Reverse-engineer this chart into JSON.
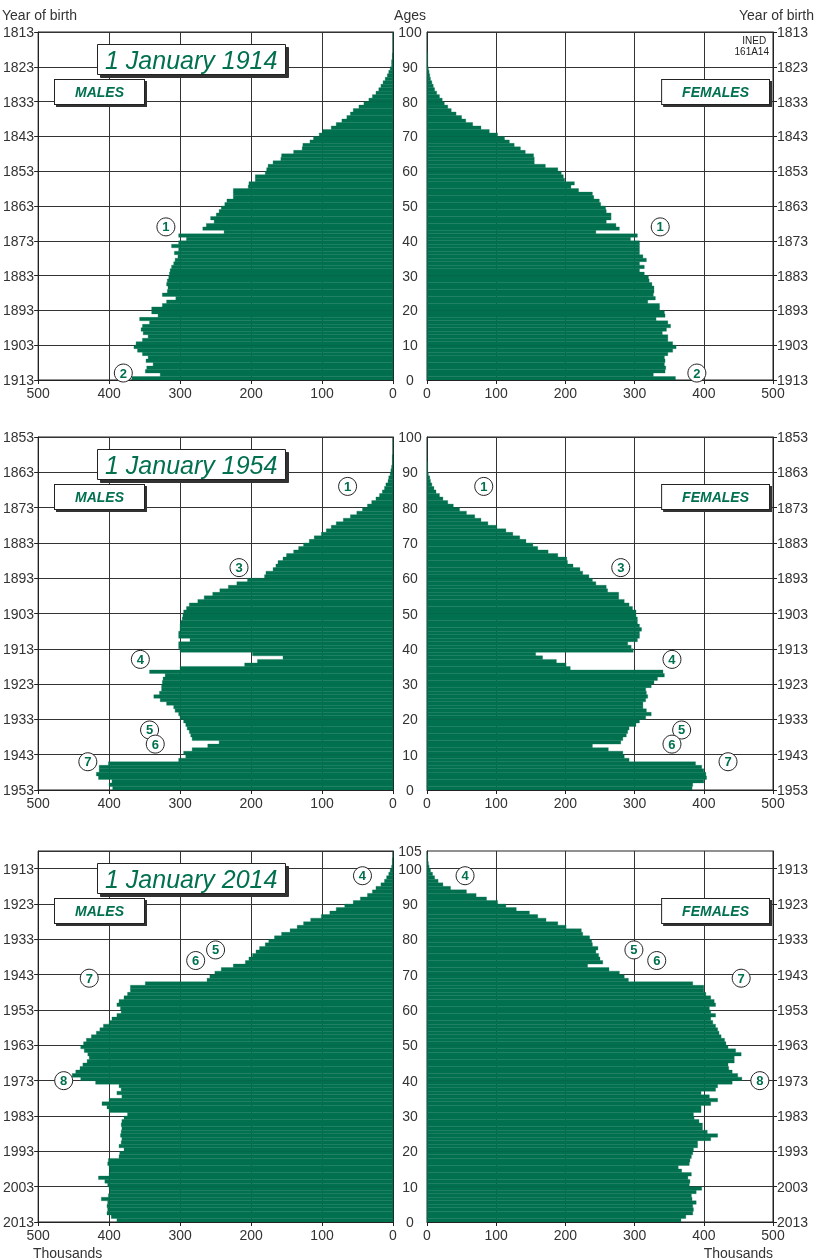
{
  "chart_data": [
    {
      "type": "histogram",
      "orientation": "horizontal",
      "title": "1 January 1914",
      "ylabel": "Ages",
      "y2label": "Year of birth",
      "color": "#00704f",
      "grid": true,
      "bins": [
        0,
        1,
        2,
        3,
        4,
        5,
        6,
        7,
        8,
        9,
        10,
        11,
        12,
        13,
        14,
        15,
        16,
        17,
        18,
        19,
        20,
        21,
        22,
        23,
        24,
        25,
        26,
        27,
        28,
        29,
        30,
        31,
        32,
        33,
        34,
        35,
        36,
        37,
        38,
        39,
        40,
        41,
        42,
        43,
        44,
        45,
        46,
        47,
        48,
        49,
        50,
        51,
        52,
        53,
        54,
        55,
        56,
        57,
        58,
        59,
        60,
        61,
        62,
        63,
        64,
        65,
        66,
        67,
        68,
        69,
        70,
        71,
        72,
        73,
        74,
        75,
        76,
        77,
        78,
        79,
        80,
        81,
        82,
        83,
        84,
        85,
        86,
        87,
        88,
        89,
        90,
        91,
        92,
        93,
        94,
        95,
        96,
        97,
        98,
        99,
        100,
        101
      ],
      "values": [
        368,
        328,
        349,
        347,
        338,
        348,
        345,
        353,
        360,
        365,
        362,
        353,
        345,
        352,
        355,
        353,
        343,
        357,
        331,
        340,
        340,
        325,
        319,
        306,
        325,
        318,
        317,
        319,
        318,
        316,
        315,
        314,
        312,
        309,
        307,
        303,
        308,
        302,
        312,
        302,
        291,
        302,
        238,
        268,
        263,
        252,
        257,
        249,
        245,
        242,
        237,
        234,
        225,
        225,
        225,
        204,
        203,
        194,
        194,
        180,
        178,
        176,
        169,
        158,
        157,
        140,
        128,
        127,
        117,
        112,
        104,
        99,
        87,
        80,
        72,
        65,
        60,
        56,
        48,
        41,
        34,
        29,
        24,
        20,
        17,
        14,
        11,
        8,
        6,
        4,
        2,
        2,
        1,
        1,
        0,
        0,
        0,
        0,
        0,
        0,
        0
      ],
      "xlim": [
        500,
        0
      ],
      "xticks": [
        500,
        400,
        300,
        200,
        100,
        0
      ],
      "ylim": [
        0,
        100
      ],
      "yticks": [
        0,
        10,
        20,
        30,
        40,
        50,
        60,
        70,
        80,
        90,
        100
      ],
      "y2lim": [
        1913,
        1813
      ],
      "y2ticks": [
        1913,
        1903,
        1893,
        1883,
        1873,
        1863,
        1853,
        1843,
        1833,
        1823,
        1813
      ],
      "annotations": [
        "MALES",
        {
          "text": "1",
          "x": 320,
          "y": 44
        },
        {
          "text": "2",
          "x": 380,
          "y": 2
        }
      ]
    },
    {
      "type": "histogram",
      "orientation": "horizontal",
      "y2label": "Year of birth",
      "color": "#00704f",
      "grid": true,
      "bins": [
        0,
        1,
        2,
        3,
        4,
        5,
        6,
        7,
        8,
        9,
        10,
        11,
        12,
        13,
        14,
        15,
        16,
        17,
        18,
        19,
        20,
        21,
        22,
        23,
        24,
        25,
        26,
        27,
        28,
        29,
        30,
        31,
        32,
        33,
        34,
        35,
        36,
        37,
        38,
        39,
        40,
        41,
        42,
        43,
        44,
        45,
        46,
        47,
        48,
        49,
        50,
        51,
        52,
        53,
        54,
        55,
        56,
        57,
        58,
        59,
        60,
        61,
        62,
        63,
        64,
        65,
        66,
        67,
        68,
        69,
        70,
        71,
        72,
        73,
        74,
        75,
        76,
        77,
        78,
        79,
        80,
        81,
        82,
        83,
        84,
        85,
        86,
        87,
        88,
        89,
        90,
        91,
        92,
        93,
        94,
        95,
        96,
        97,
        98,
        99,
        100,
        101
      ],
      "values": [
        359,
        327,
        344,
        345,
        343,
        344,
        343,
        348,
        355,
        360,
        355,
        348,
        348,
        340,
        346,
        352,
        348,
        331,
        344,
        343,
        336,
        336,
        319,
        330,
        327,
        328,
        328,
        325,
        321,
        320,
        314,
        307,
        314,
        307,
        317,
        312,
        307,
        307,
        307,
        307,
        294,
        304,
        244,
        278,
        273,
        259,
        266,
        266,
        259,
        258,
        251,
        249,
        241,
        239,
        219,
        208,
        213,
        199,
        197,
        194,
        189,
        171,
        155,
        155,
        154,
        142,
        135,
        126,
        119,
        112,
        102,
        90,
        78,
        66,
        56,
        50,
        42,
        35,
        30,
        25,
        22,
        18,
        14,
        11,
        9,
        7,
        5,
        4,
        3,
        2,
        1,
        1,
        1,
        1,
        0,
        0,
        0,
        0,
        0,
        0,
        0
      ],
      "xlim": [
        0,
        500
      ],
      "xticks": [
        0,
        100,
        200,
        300,
        400,
        500
      ],
      "ylim": [
        0,
        100
      ],
      "y2lim": [
        1913,
        1813
      ],
      "y2ticks": [
        1913,
        1903,
        1893,
        1883,
        1873,
        1863,
        1853,
        1843,
        1833,
        1823,
        1813
      ],
      "annotations": [
        "INED 161A14",
        "FEMALES",
        {
          "text": "1",
          "x": 337,
          "y": 44
        },
        {
          "text": "2",
          "x": 390,
          "y": 2
        }
      ]
    },
    {
      "type": "histogram",
      "orientation": "horizontal",
      "title": "1 January 1954",
      "color": "#00704f",
      "grid": true,
      "bins": [
        0,
        1,
        2,
        3,
        4,
        5,
        6,
        7,
        8,
        9,
        10,
        11,
        12,
        13,
        14,
        15,
        16,
        17,
        18,
        19,
        20,
        21,
        22,
        23,
        24,
        25,
        26,
        27,
        28,
        29,
        30,
        31,
        32,
        33,
        34,
        35,
        36,
        37,
        38,
        39,
        40,
        41,
        42,
        43,
        44,
        45,
        46,
        47,
        48,
        49,
        50,
        51,
        52,
        53,
        54,
        55,
        56,
        57,
        58,
        59,
        60,
        61,
        62,
        63,
        64,
        65,
        66,
        67,
        68,
        69,
        70,
        71,
        72,
        73,
        74,
        75,
        76,
        77,
        78,
        79,
        80,
        81,
        82,
        83,
        84,
        85,
        86,
        87,
        88,
        89,
        90,
        91,
        92,
        93,
        94,
        95,
        96,
        97,
        98,
        99,
        100,
        101
      ],
      "values": [
        395,
        400,
        396,
        415,
        418,
        414,
        414,
        401,
        302,
        292,
        295,
        283,
        261,
        245,
        283,
        285,
        287,
        290,
        292,
        295,
        300,
        302,
        307,
        309,
        319,
        328,
        337,
        329,
        326,
        326,
        325,
        324,
        321,
        343,
        300,
        209,
        191,
        155,
        198,
        300,
        302,
        302,
        286,
        302,
        302,
        300,
        300,
        299,
        297,
        296,
        295,
        291,
        287,
        275,
        266,
        254,
        244,
        232,
        220,
        205,
        181,
        179,
        169,
        165,
        162,
        155,
        150,
        140,
        133,
        126,
        118,
        111,
        101,
        94,
        87,
        80,
        70,
        60,
        51,
        43,
        36,
        30,
        24,
        19,
        15,
        12,
        10,
        7,
        6,
        4,
        3,
        2,
        1,
        1,
        1,
        0,
        0,
        0,
        0,
        0,
        0
      ],
      "xlim": [
        500,
        0
      ],
      "xticks": [
        500,
        400,
        300,
        200,
        100,
        0
      ],
      "ylim": [
        0,
        100
      ],
      "yticks": [
        0,
        10,
        20,
        30,
        40,
        50,
        60,
        70,
        80,
        90,
        100
      ],
      "y2lim": [
        1953,
        1853
      ],
      "y2ticks": [
        1953,
        1943,
        1933,
        1923,
        1913,
        1903,
        1893,
        1883,
        1873,
        1863,
        1853
      ],
      "annotations": [
        "MALES",
        {
          "text": "1",
          "x": 64,
          "y": 86
        },
        {
          "text": "3",
          "x": 217,
          "y": 63
        },
        {
          "text": "4",
          "x": 356,
          "y": 37
        },
        {
          "text": "5",
          "x": 343,
          "y": 17
        },
        {
          "text": "6",
          "x": 335,
          "y": 13
        },
        {
          "text": "7",
          "x": 430,
          "y": 8
        }
      ]
    },
    {
      "type": "histogram",
      "orientation": "horizontal",
      "color": "#00704f",
      "grid": true,
      "bins": [
        0,
        1,
        2,
        3,
        4,
        5,
        6,
        7,
        8,
        9,
        10,
        11,
        12,
        13,
        14,
        15,
        16,
        17,
        18,
        19,
        20,
        21,
        22,
        23,
        24,
        25,
        26,
        27,
        28,
        29,
        30,
        31,
        32,
        33,
        34,
        35,
        36,
        37,
        38,
        39,
        40,
        41,
        42,
        43,
        44,
        45,
        46,
        47,
        48,
        49,
        50,
        51,
        52,
        53,
        54,
        55,
        56,
        57,
        58,
        59,
        60,
        61,
        62,
        63,
        64,
        65,
        66,
        67,
        68,
        69,
        70,
        71,
        72,
        73,
        74,
        75,
        76,
        77,
        78,
        79,
        80,
        81,
        82,
        83,
        84,
        85,
        86,
        87,
        88,
        89,
        90,
        91,
        92,
        93,
        94,
        95,
        96,
        97,
        98,
        99,
        100,
        101
      ],
      "values": [
        383,
        384,
        400,
        404,
        403,
        400,
        397,
        388,
        292,
        285,
        283,
        262,
        239,
        280,
        283,
        288,
        290,
        292,
        302,
        307,
        316,
        324,
        317,
        312,
        312,
        316,
        319,
        317,
        316,
        324,
        328,
        333,
        343,
        341,
        207,
        201,
        187,
        167,
        157,
        298,
        295,
        290,
        304,
        307,
        307,
        310,
        307,
        304,
        304,
        302,
        302,
        297,
        292,
        285,
        277,
        277,
        261,
        259,
        244,
        239,
        234,
        225,
        221,
        211,
        203,
        202,
        189,
        175,
        160,
        153,
        143,
        134,
        124,
        114,
        101,
        88,
        78,
        69,
        57,
        47,
        38,
        30,
        23,
        18,
        13,
        10,
        7,
        5,
        4,
        2,
        1,
        1,
        1,
        0,
        0,
        0,
        0,
        0,
        0,
        0,
        0
      ],
      "xlim": [
        0,
        500
      ],
      "xticks": [
        0,
        100,
        200,
        300,
        400,
        500
      ],
      "ylim": [
        0,
        100
      ],
      "y2lim": [
        1953,
        1853
      ],
      "y2ticks": [
        1953,
        1943,
        1933,
        1923,
        1913,
        1903,
        1893,
        1883,
        1873,
        1863,
        1853
      ],
      "annotations": [
        "FEMALES",
        {
          "text": "1",
          "x": 82,
          "y": 86
        },
        {
          "text": "3",
          "x": 280,
          "y": 63
        },
        {
          "text": "4",
          "x": 354,
          "y": 37
        },
        {
          "text": "5",
          "x": 368,
          "y": 17
        },
        {
          "text": "6",
          "x": 354,
          "y": 13
        },
        {
          "text": "7",
          "x": 435,
          "y": 8
        }
      ]
    },
    {
      "type": "histogram",
      "orientation": "horizontal",
      "title": "1 January 2014",
      "xlabel": "Thousands",
      "color": "#00704f",
      "grid": true,
      "bins": [
        0,
        1,
        2,
        3,
        4,
        5,
        6,
        7,
        8,
        9,
        10,
        11,
        12,
        13,
        14,
        15,
        16,
        17,
        18,
        19,
        20,
        21,
        22,
        23,
        24,
        25,
        26,
        27,
        28,
        29,
        30,
        31,
        32,
        33,
        34,
        35,
        36,
        37,
        38,
        39,
        40,
        41,
        42,
        43,
        44,
        45,
        46,
        47,
        48,
        49,
        50,
        51,
        52,
        53,
        54,
        55,
        56,
        57,
        58,
        59,
        60,
        61,
        62,
        63,
        64,
        65,
        66,
        67,
        68,
        69,
        70,
        71,
        72,
        73,
        74,
        75,
        76,
        77,
        78,
        79,
        80,
        81,
        82,
        83,
        84,
        85,
        86,
        87,
        88,
        89,
        90,
        91,
        92,
        93,
        94,
        95,
        96,
        97,
        98,
        99,
        100,
        101,
        102,
        103,
        104,
        105
      ],
      "values": [
        389,
        397,
        403,
        402,
        403,
        402,
        411,
        401,
        399,
        400,
        402,
        406,
        415,
        400,
        399,
        400,
        402,
        401,
        386,
        385,
        379,
        386,
        383,
        382,
        384,
        383,
        382,
        383,
        382,
        379,
        374,
        400,
        403,
        410,
        400,
        382,
        389,
        383,
        386,
        419,
        440,
        452,
        447,
        441,
        437,
        431,
        428,
        430,
        435,
        440,
        436,
        432,
        425,
        418,
        413,
        408,
        400,
        396,
        389,
        383,
        384,
        389,
        386,
        379,
        374,
        370,
        370,
        349,
        262,
        258,
        251,
        242,
        225,
        208,
        203,
        198,
        193,
        188,
        180,
        175,
        167,
        157,
        145,
        135,
        126,
        116,
        101,
        89,
        80,
        68,
        56,
        46,
        36,
        29,
        24,
        17,
        12,
        9,
        6,
        4,
        2,
        1,
        1,
        0,
        0
      ],
      "xlim": [
        500,
        0
      ],
      "xticks": [
        500,
        400,
        300,
        200,
        100,
        0
      ],
      "ylim": [
        0,
        105
      ],
      "yticks": [
        0,
        10,
        20,
        30,
        40,
        50,
        60,
        70,
        80,
        90,
        100,
        105
      ],
      "y2lim": [
        2013,
        1908
      ],
      "y2ticks": [
        2013,
        2003,
        1993,
        1983,
        1973,
        1963,
        1953,
        1943,
        1933,
        1923,
        1913
      ],
      "annotations": [
        "MALES",
        {
          "text": "4",
          "x": 43,
          "y": 98
        },
        {
          "text": "5",
          "x": 250,
          "y": 77
        },
        {
          "text": "6",
          "x": 278,
          "y": 74
        },
        {
          "text": "7",
          "x": 428,
          "y": 69
        },
        {
          "text": "8",
          "x": 464,
          "y": 40
        }
      ]
    },
    {
      "type": "histogram",
      "orientation": "horizontal",
      "xlabel": "Thousands",
      "color": "#00704f",
      "grid": true,
      "bins": [
        0,
        1,
        2,
        3,
        4,
        5,
        6,
        7,
        8,
        9,
        10,
        11,
        12,
        13,
        14,
        15,
        16,
        17,
        18,
        19,
        20,
        21,
        22,
        23,
        24,
        25,
        26,
        27,
        28,
        29,
        30,
        31,
        32,
        33,
        34,
        35,
        36,
        37,
        38,
        39,
        40,
        41,
        42,
        43,
        44,
        45,
        46,
        47,
        48,
        49,
        50,
        51,
        52,
        53,
        54,
        55,
        56,
        57,
        58,
        59,
        60,
        61,
        62,
        63,
        64,
        65,
        66,
        67,
        68,
        69,
        70,
        71,
        72,
        73,
        74,
        75,
        76,
        77,
        78,
        79,
        80,
        81,
        82,
        83,
        84,
        85,
        86,
        87,
        88,
        89,
        90,
        91,
        92,
        93,
        94,
        95,
        96,
        97,
        98,
        99,
        100,
        101,
        102,
        103,
        104,
        105
      ],
      "values": [
        367,
        374,
        384,
        385,
        384,
        389,
        383,
        382,
        389,
        397,
        379,
        380,
        377,
        382,
        368,
        363,
        379,
        380,
        382,
        384,
        385,
        391,
        391,
        410,
        420,
        405,
        398,
        398,
        393,
        386,
        385,
        396,
        396,
        410,
        420,
        408,
        396,
        417,
        420,
        441,
        455,
        449,
        441,
        436,
        435,
        444,
        444,
        454,
        446,
        435,
        432,
        430,
        425,
        422,
        420,
        417,
        413,
        410,
        417,
        410,
        408,
        417,
        415,
        410,
        403,
        400,
        400,
        384,
        291,
        285,
        278,
        263,
        232,
        254,
        250,
        248,
        244,
        247,
        239,
        238,
        235,
        225,
        223,
        201,
        189,
        172,
        160,
        148,
        129,
        114,
        102,
        86,
        71,
        57,
        34,
        23,
        16,
        11,
        8,
        5,
        3,
        2,
        1,
        1,
        0
      ],
      "xlim": [
        0,
        500
      ],
      "xticks": [
        0,
        100,
        200,
        300,
        400,
        500
      ],
      "ylim": [
        0,
        105
      ],
      "y2lim": [
        2013,
        1908
      ],
      "y2ticks": [
        2013,
        2003,
        1993,
        1983,
        1973,
        1963,
        1953,
        1943,
        1933,
        1923,
        1913
      ],
      "annotations": [
        "FEMALES",
        {
          "text": "4",
          "x": 55,
          "y": 98
        },
        {
          "text": "5",
          "x": 299,
          "y": 77
        },
        {
          "text": "6",
          "x": 332,
          "y": 74
        },
        {
          "text": "7",
          "x": 454,
          "y": 69
        },
        {
          "text": "8",
          "x": 481,
          "y": 40
        }
      ]
    }
  ]
}
